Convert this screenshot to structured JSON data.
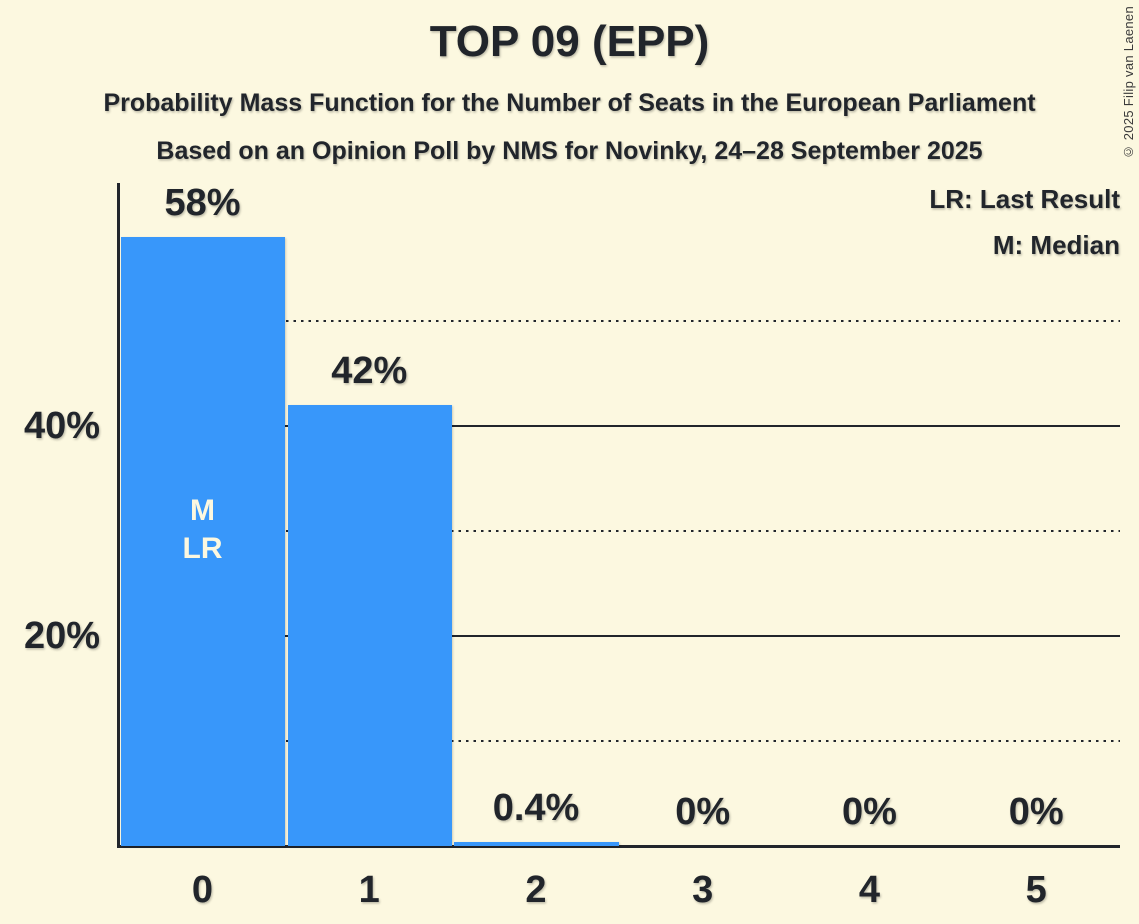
{
  "page": {
    "title": "TOP 09 (EPP)",
    "subtitle1": "Probability Mass Function for the Number of Seats in the European Parliament",
    "subtitle2": "Based on an Opinion Poll by NMS for Novinky, 24–28 September 2025",
    "copyright": "© 2025 Filip van Laenen"
  },
  "legend": {
    "lines": [
      "LR: Last Result",
      "M: Median"
    ]
  },
  "chart_data": {
    "type": "bar",
    "title": "TOP 09 (EPP)",
    "categories": [
      "0",
      "1",
      "2",
      "3",
      "4",
      "5"
    ],
    "values": [
      58,
      42,
      0.4,
      0,
      0,
      0
    ],
    "value_labels": [
      "58%",
      "42%",
      "0.4%",
      "0%",
      "0%",
      "0%"
    ],
    "bar_annotations": [
      {
        "category_index": 0,
        "lines": [
          "M",
          "LR"
        ]
      }
    ],
    "ylim": [
      0,
      63
    ],
    "y_ticks": [
      {
        "value": 40,
        "label": "40%"
      },
      {
        "value": 20,
        "label": "20%"
      }
    ],
    "gridlines": [
      {
        "value": 50,
        "style": "dotted"
      },
      {
        "value": 40,
        "style": "solid"
      },
      {
        "value": 30,
        "style": "dotted"
      },
      {
        "value": 20,
        "style": "solid"
      },
      {
        "value": 10,
        "style": "dotted"
      }
    ],
    "legend_notes": [
      "LR: Last Result",
      "M: Median"
    ],
    "colors": {
      "bar": "#3897fa",
      "background": "#fcf8e0",
      "text": "#21252b",
      "annotation_text": "#fcf8e0"
    }
  }
}
